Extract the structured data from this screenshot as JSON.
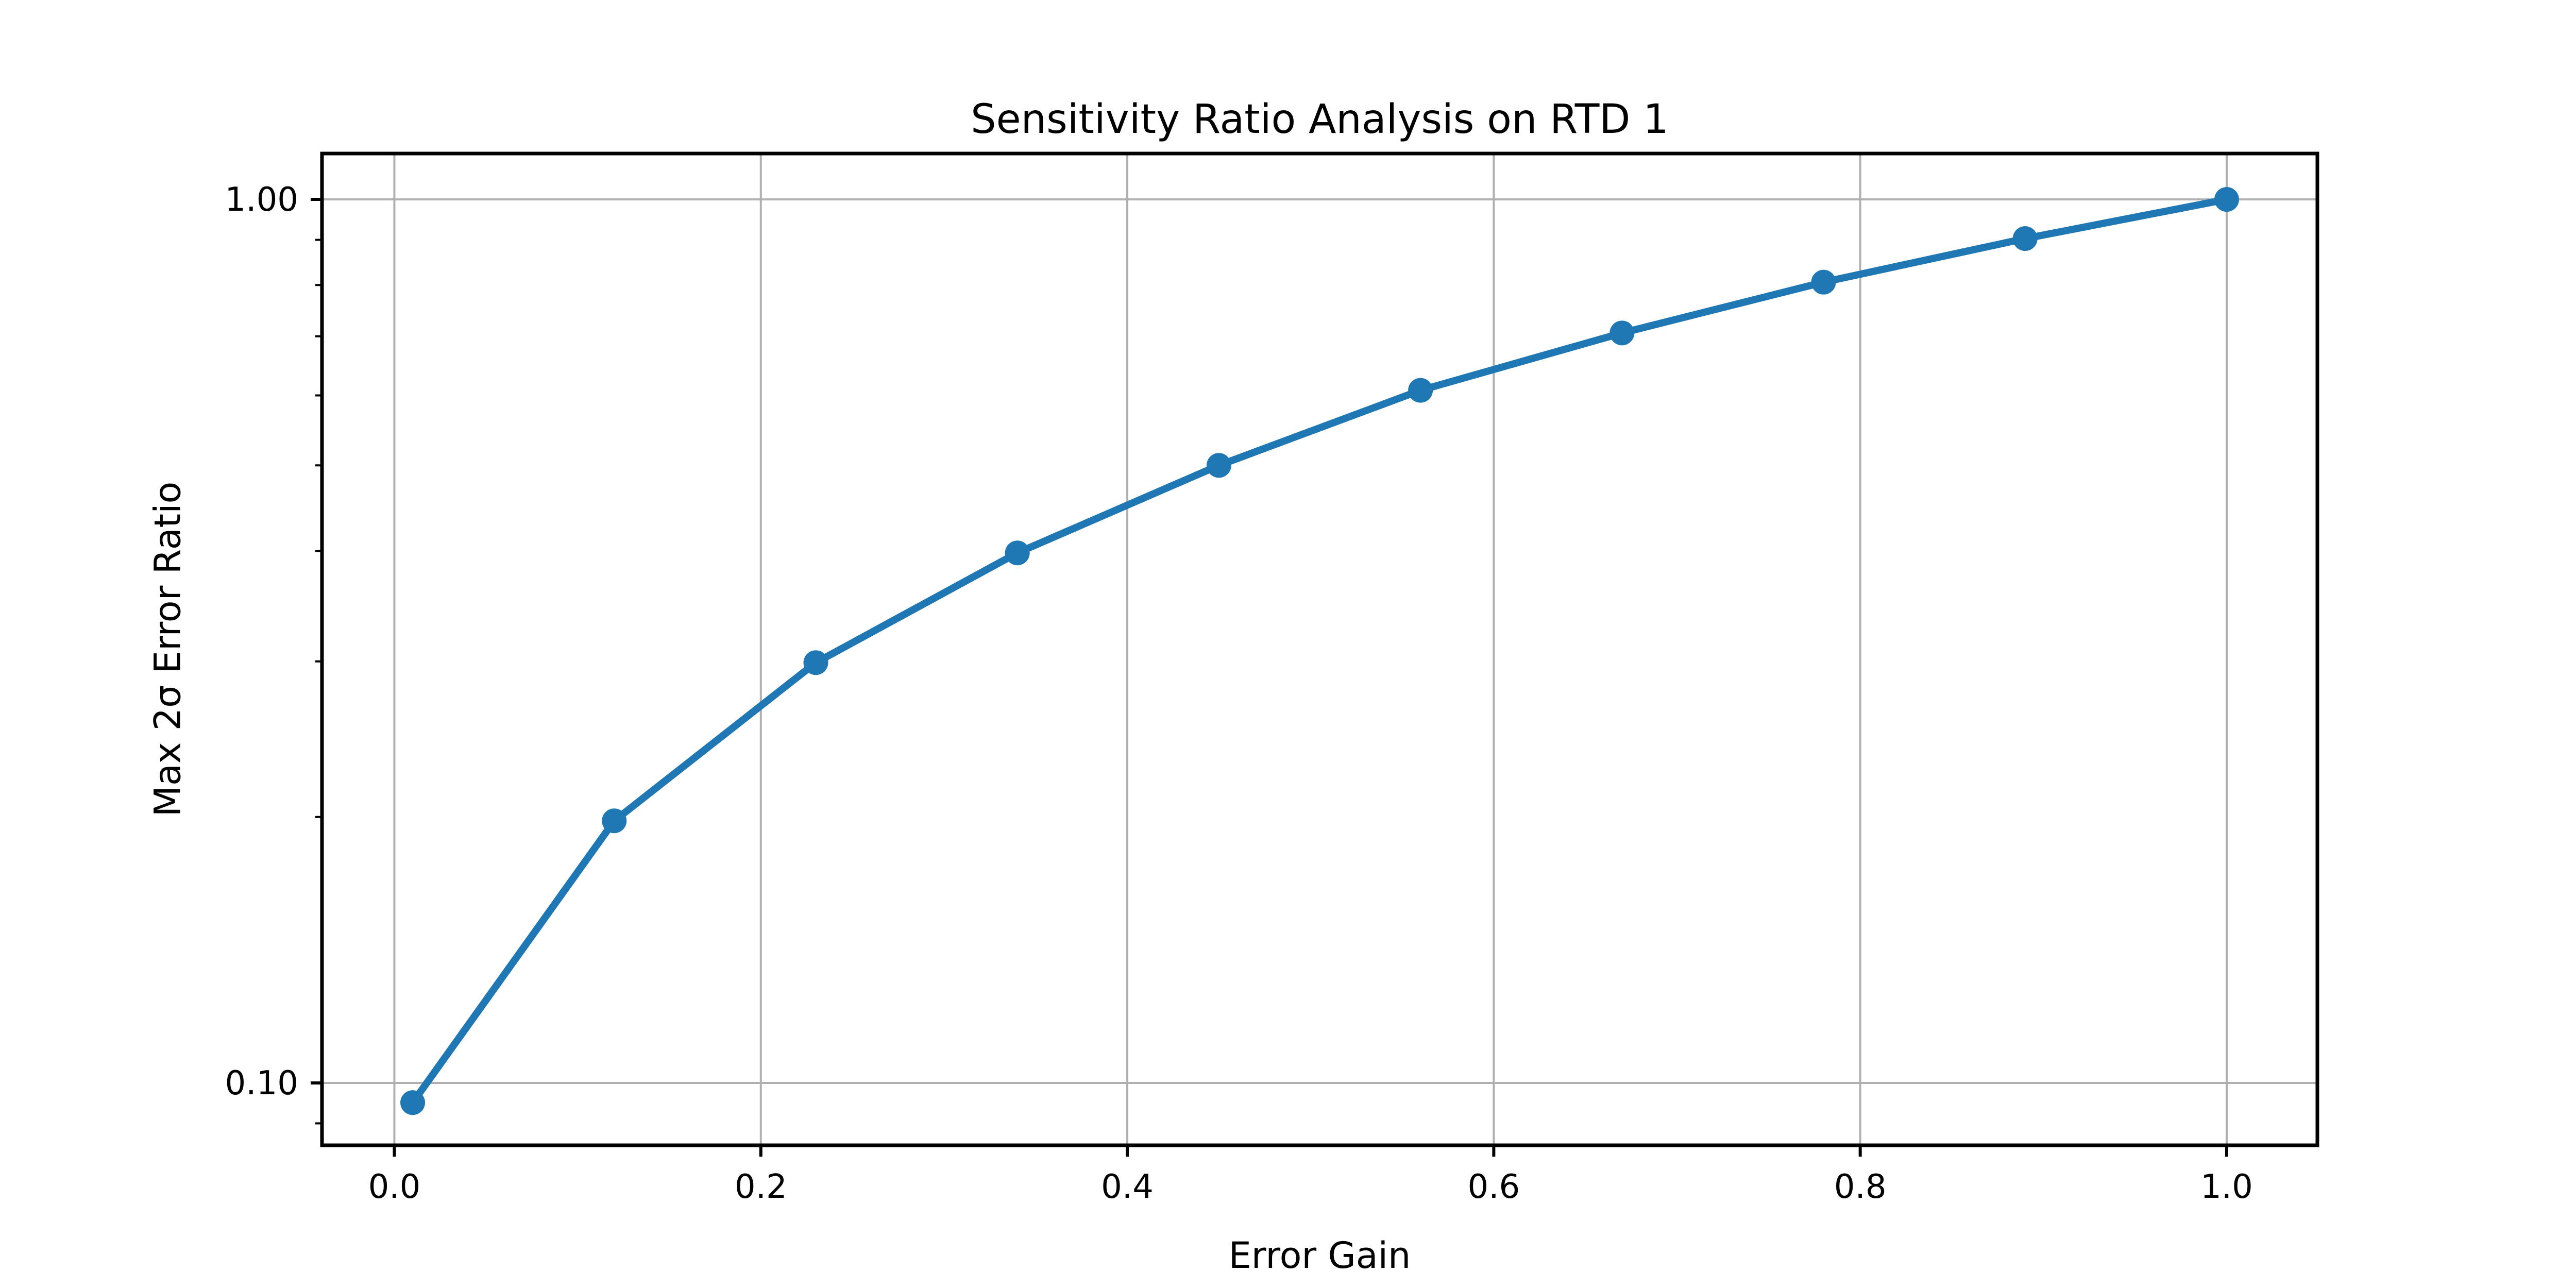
{
  "figure": {
    "background": "#ffffff"
  },
  "chart_data": {
    "type": "line",
    "title": "Sensitivity Ratio Analysis on RTD 1",
    "xlabel": "Error Gain",
    "ylabel": "Max 2σ Error Ratio",
    "x": [
      0.01,
      0.12,
      0.23,
      0.34,
      0.45,
      0.56,
      0.67,
      0.78,
      0.89,
      1.0
    ],
    "y": [
      0.095,
      0.198,
      0.299,
      0.398,
      0.5,
      0.608,
      0.706,
      0.806,
      0.903,
      1.0
    ],
    "xscale": "linear",
    "yscale": "log",
    "xlim": [
      -0.0395,
      1.0495
    ],
    "ylim": [
      0.085,
      1.127
    ],
    "xtick_values": [
      0.0,
      0.2,
      0.4,
      0.6,
      0.8,
      1.0
    ],
    "xtick_labels": [
      "0.0",
      "0.2",
      "0.4",
      "0.6",
      "0.8",
      "1.0"
    ],
    "ytick_values": [
      1.0,
      0.1
    ],
    "ytick_labels": [
      "1.00",
      "0.10"
    ],
    "ytick_minor_values": [
      0.9,
      0.8,
      0.7,
      0.6,
      0.5,
      0.4,
      0.3,
      0.2,
      0.09
    ],
    "grid": true,
    "legend": false,
    "line_color": "#1f77b4",
    "marker_color": "#1f77b4",
    "grid_color": "#b0b0b0",
    "spine_color": "#000000",
    "tick_color": "#000000"
  }
}
